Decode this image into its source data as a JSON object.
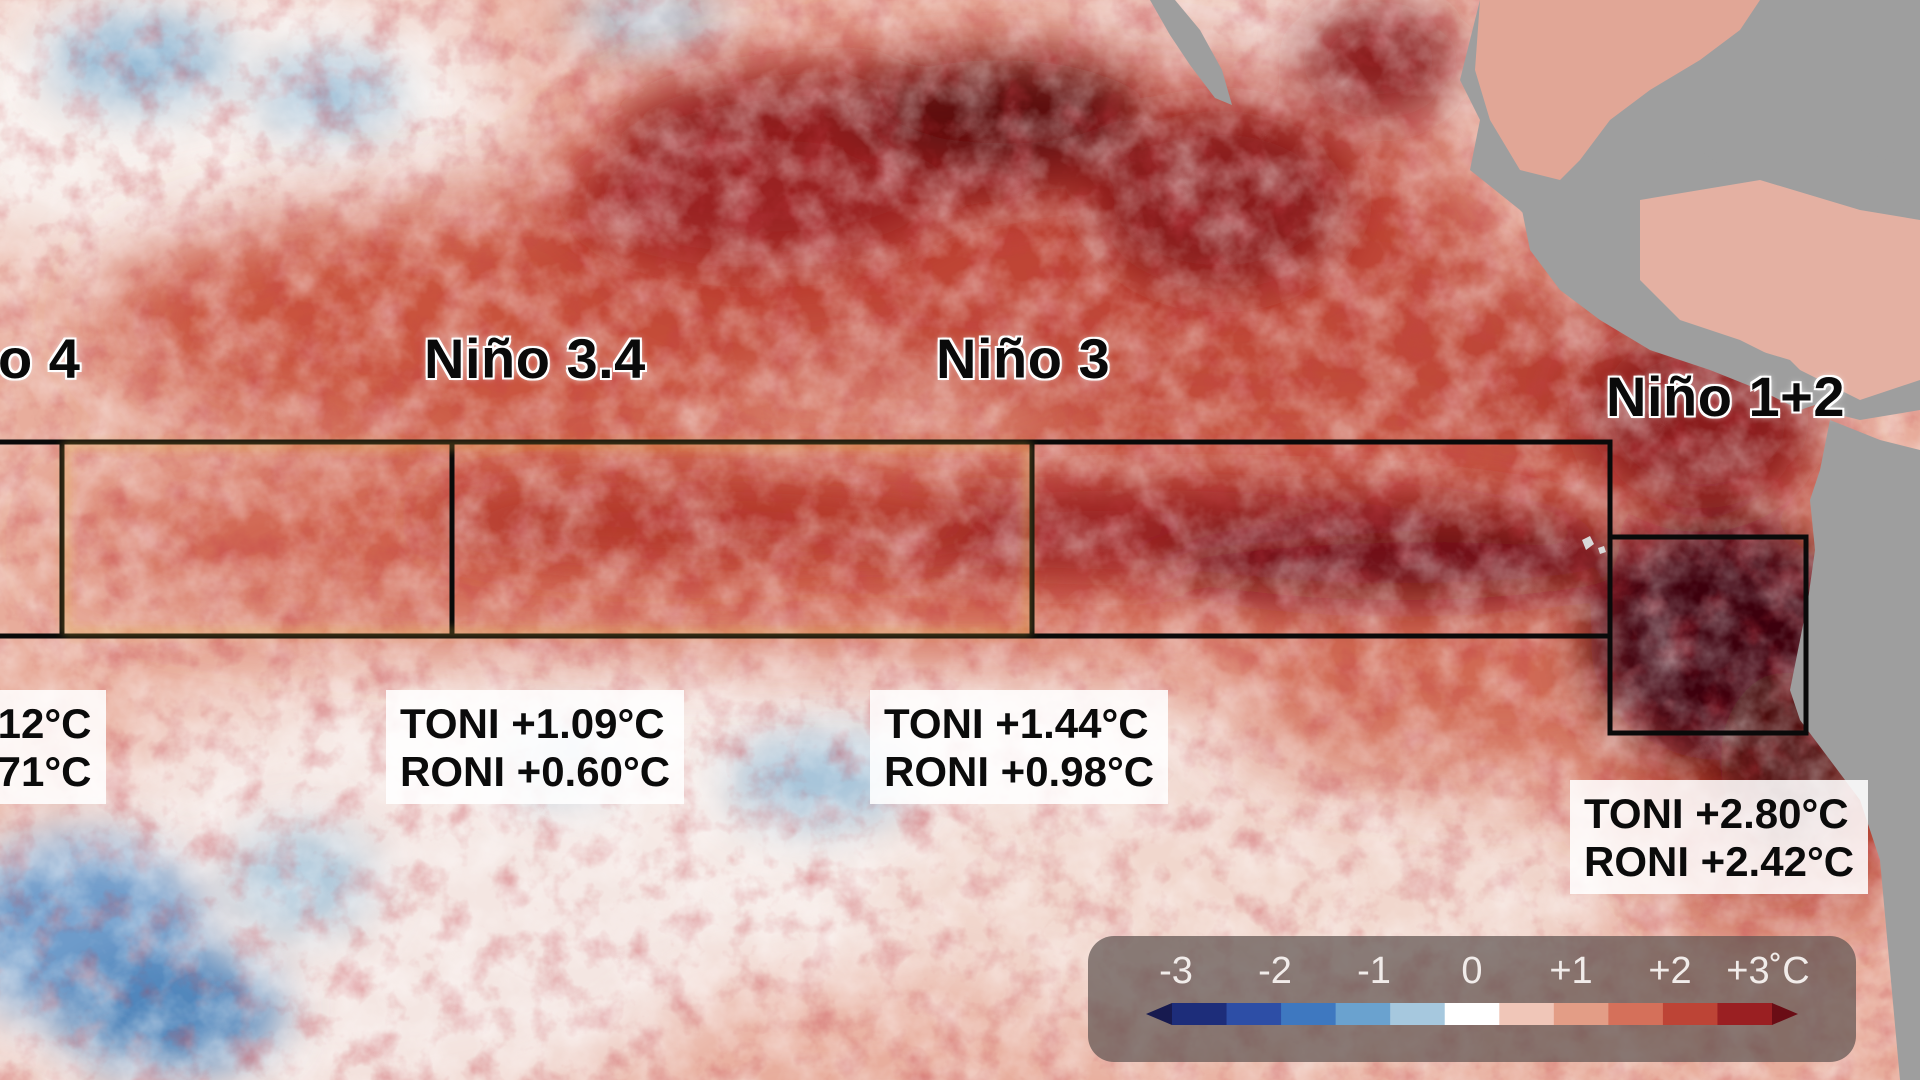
{
  "regions": [
    {
      "id": "nino4",
      "label": "o 4",
      "toni": ".12°C",
      "roni": ".71°C"
    },
    {
      "id": "nino34",
      "label": "Niño 3.4",
      "toni": "TONI +1.09°C",
      "roni": "RONI +0.60°C"
    },
    {
      "id": "nino3",
      "label": "Niño 3",
      "toni": "TONI +1.44°C",
      "roni": "RONI +0.98°C"
    },
    {
      "id": "nino12",
      "label": "Niño 1+2",
      "toni": "TONI +2.80°C",
      "roni": "RONI +2.42°C"
    }
  ],
  "legend": {
    "ticks": [
      "-3",
      "-2",
      "-1",
      "0",
      "+1",
      "+2",
      "+3˚C"
    ],
    "colors": [
      "#171a4f",
      "#1d2d7a",
      "#2d4ea6",
      "#3e78c0",
      "#6aa2cf",
      "#a6c8de",
      "#ffffff",
      "#f0c6b8",
      "#e39d86",
      "#d5705a",
      "#bd4436",
      "#9a1f22",
      "#6a0d15"
    ]
  },
  "colors": {
    "land": "#9e9e9e",
    "warm_max": "#3d0508",
    "warm_strong": "#8a1a1a",
    "warm_mid": "#c9523e",
    "warm_light": "#eaaf9d",
    "neutral": "#f7eeea",
    "cool_light": "#a9c6da",
    "cool_mid": "#4f85bb",
    "nino34_outline": "#e0b23a"
  }
}
